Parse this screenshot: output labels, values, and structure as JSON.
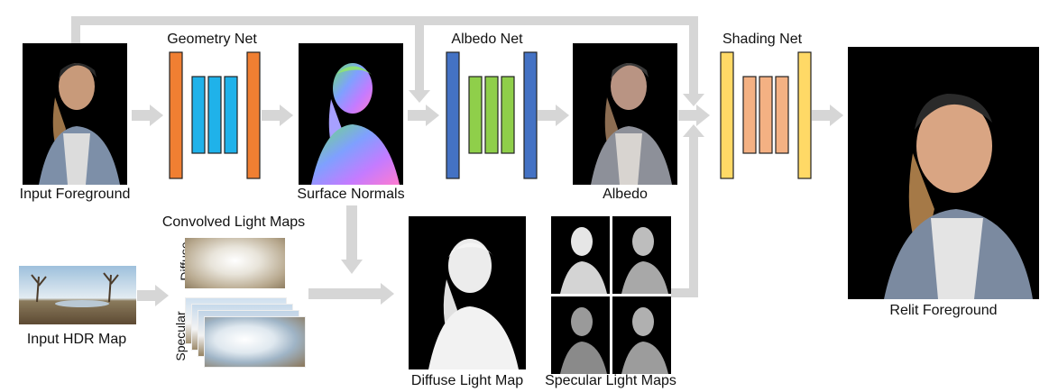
{
  "labels": {
    "input_foreground": "Input Foreground",
    "geometry_net": "Geometry Net",
    "surface_normals": "Surface Normals",
    "albedo_net": "Albedo Net",
    "albedo": "Albedo",
    "shading_net": "Shading Net",
    "relit_foreground": "Relit Foreground",
    "convolved_light_maps": "Convolved Light Maps",
    "diffuse": "Diffuse",
    "specular": "Specular",
    "input_hdr_map": "Input HDR Map",
    "diffuse_light_map": "Diffuse Light Map",
    "specular_light_maps": "Specular Light Maps"
  },
  "colors": {
    "arrow": "#d6d6d6",
    "geometry_outer": "#f07f32",
    "geometry_inner": "#1fb2ea",
    "albedo_outer": "#4472c4",
    "albedo_inner": "#8fcf4a",
    "shading_outer": "#ffd966",
    "shading_inner": "#f4b183"
  }
}
